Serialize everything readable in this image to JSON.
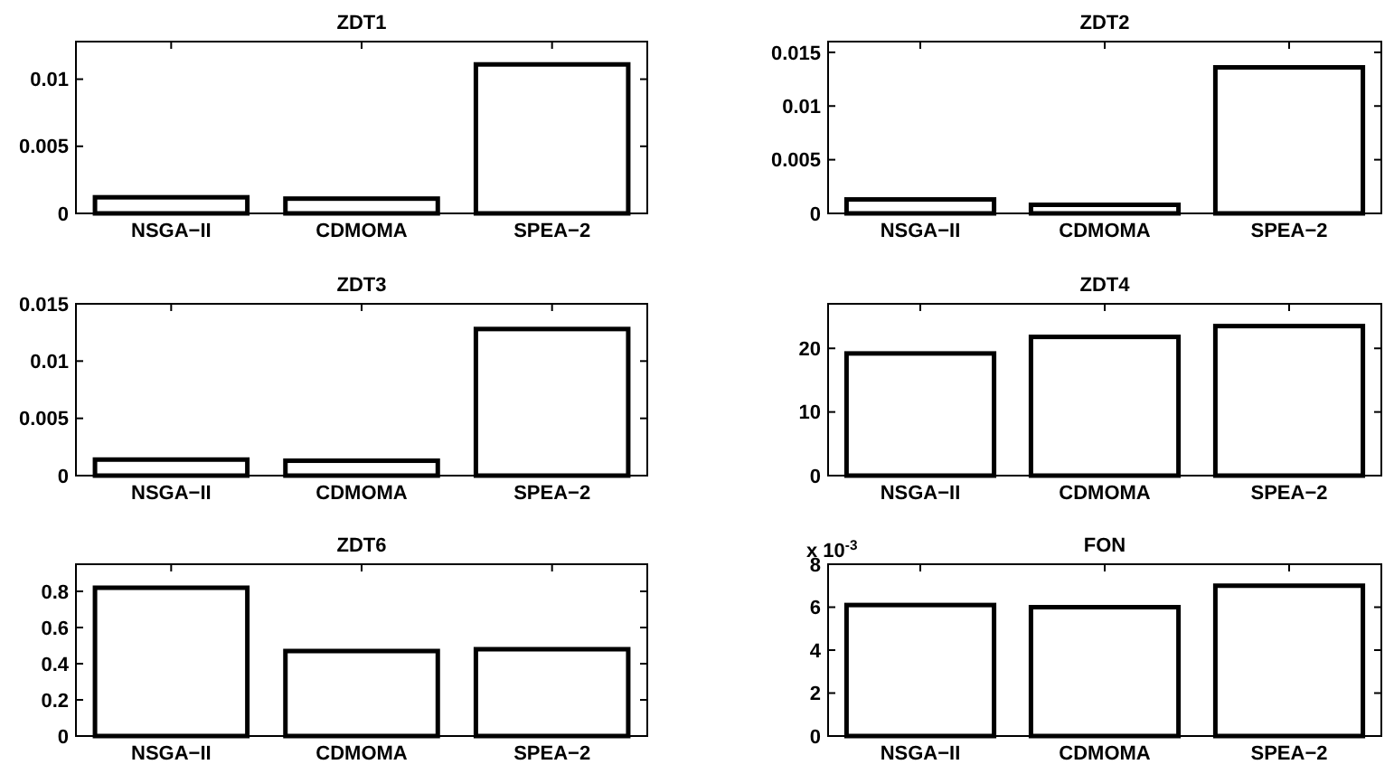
{
  "chart_data": [
    {
      "type": "bar",
      "title": "ZDT1",
      "categories": [
        "NSGA−II",
        "CDMOMA",
        "SPEA−2"
      ],
      "values": [
        0.0012,
        0.0011,
        0.0111
      ],
      "color": "#ffffff",
      "ylim": [
        0,
        0.0128
      ],
      "yticks": [
        0,
        0.005,
        0.01
      ]
    },
    {
      "type": "bar",
      "title": "ZDT2",
      "categories": [
        "NSGA−II",
        "CDMOMA",
        "SPEA−2"
      ],
      "values": [
        0.0013,
        0.0008,
        0.0136
      ],
      "color": "#ffffff",
      "ylim": [
        0,
        0.016
      ],
      "yticks": [
        0,
        0.005,
        0.01,
        0.015
      ]
    },
    {
      "type": "bar",
      "title": "ZDT3",
      "categories": [
        "NSGA−II",
        "CDMOMA",
        "SPEA−2"
      ],
      "values": [
        0.0014,
        0.0013,
        0.0128
      ],
      "color": "#ffffff",
      "ylim": [
        0,
        0.015
      ],
      "yticks": [
        0,
        0.005,
        0.01,
        0.015
      ]
    },
    {
      "type": "bar",
      "title": "ZDT4",
      "categories": [
        "NSGA−II",
        "CDMOMA",
        "SPEA−2"
      ],
      "values": [
        19.2,
        21.8,
        23.5
      ],
      "color": "#ffffff",
      "ylim": [
        0,
        27
      ],
      "yticks": [
        0,
        10,
        20
      ]
    },
    {
      "type": "bar",
      "title": "ZDT6",
      "categories": [
        "NSGA−II",
        "CDMOMA",
        "SPEA−2"
      ],
      "values": [
        0.82,
        0.47,
        0.48
      ],
      "color": "#ffffff",
      "ylim": [
        0,
        0.95
      ],
      "yticks": [
        0,
        0.2,
        0.4,
        0.6,
        0.8
      ]
    },
    {
      "type": "bar",
      "title": "FON",
      "categories": [
        "NSGA−II",
        "CDMOMA",
        "SPEA−2"
      ],
      "values": [
        6.1,
        6.0,
        7.0
      ],
      "color": "#ffffff",
      "ylim": [
        0,
        8
      ],
      "yticks": [
        0,
        2,
        4,
        6,
        8
      ],
      "annotations": [
        "x 10$^{-3}$"
      ]
    }
  ]
}
